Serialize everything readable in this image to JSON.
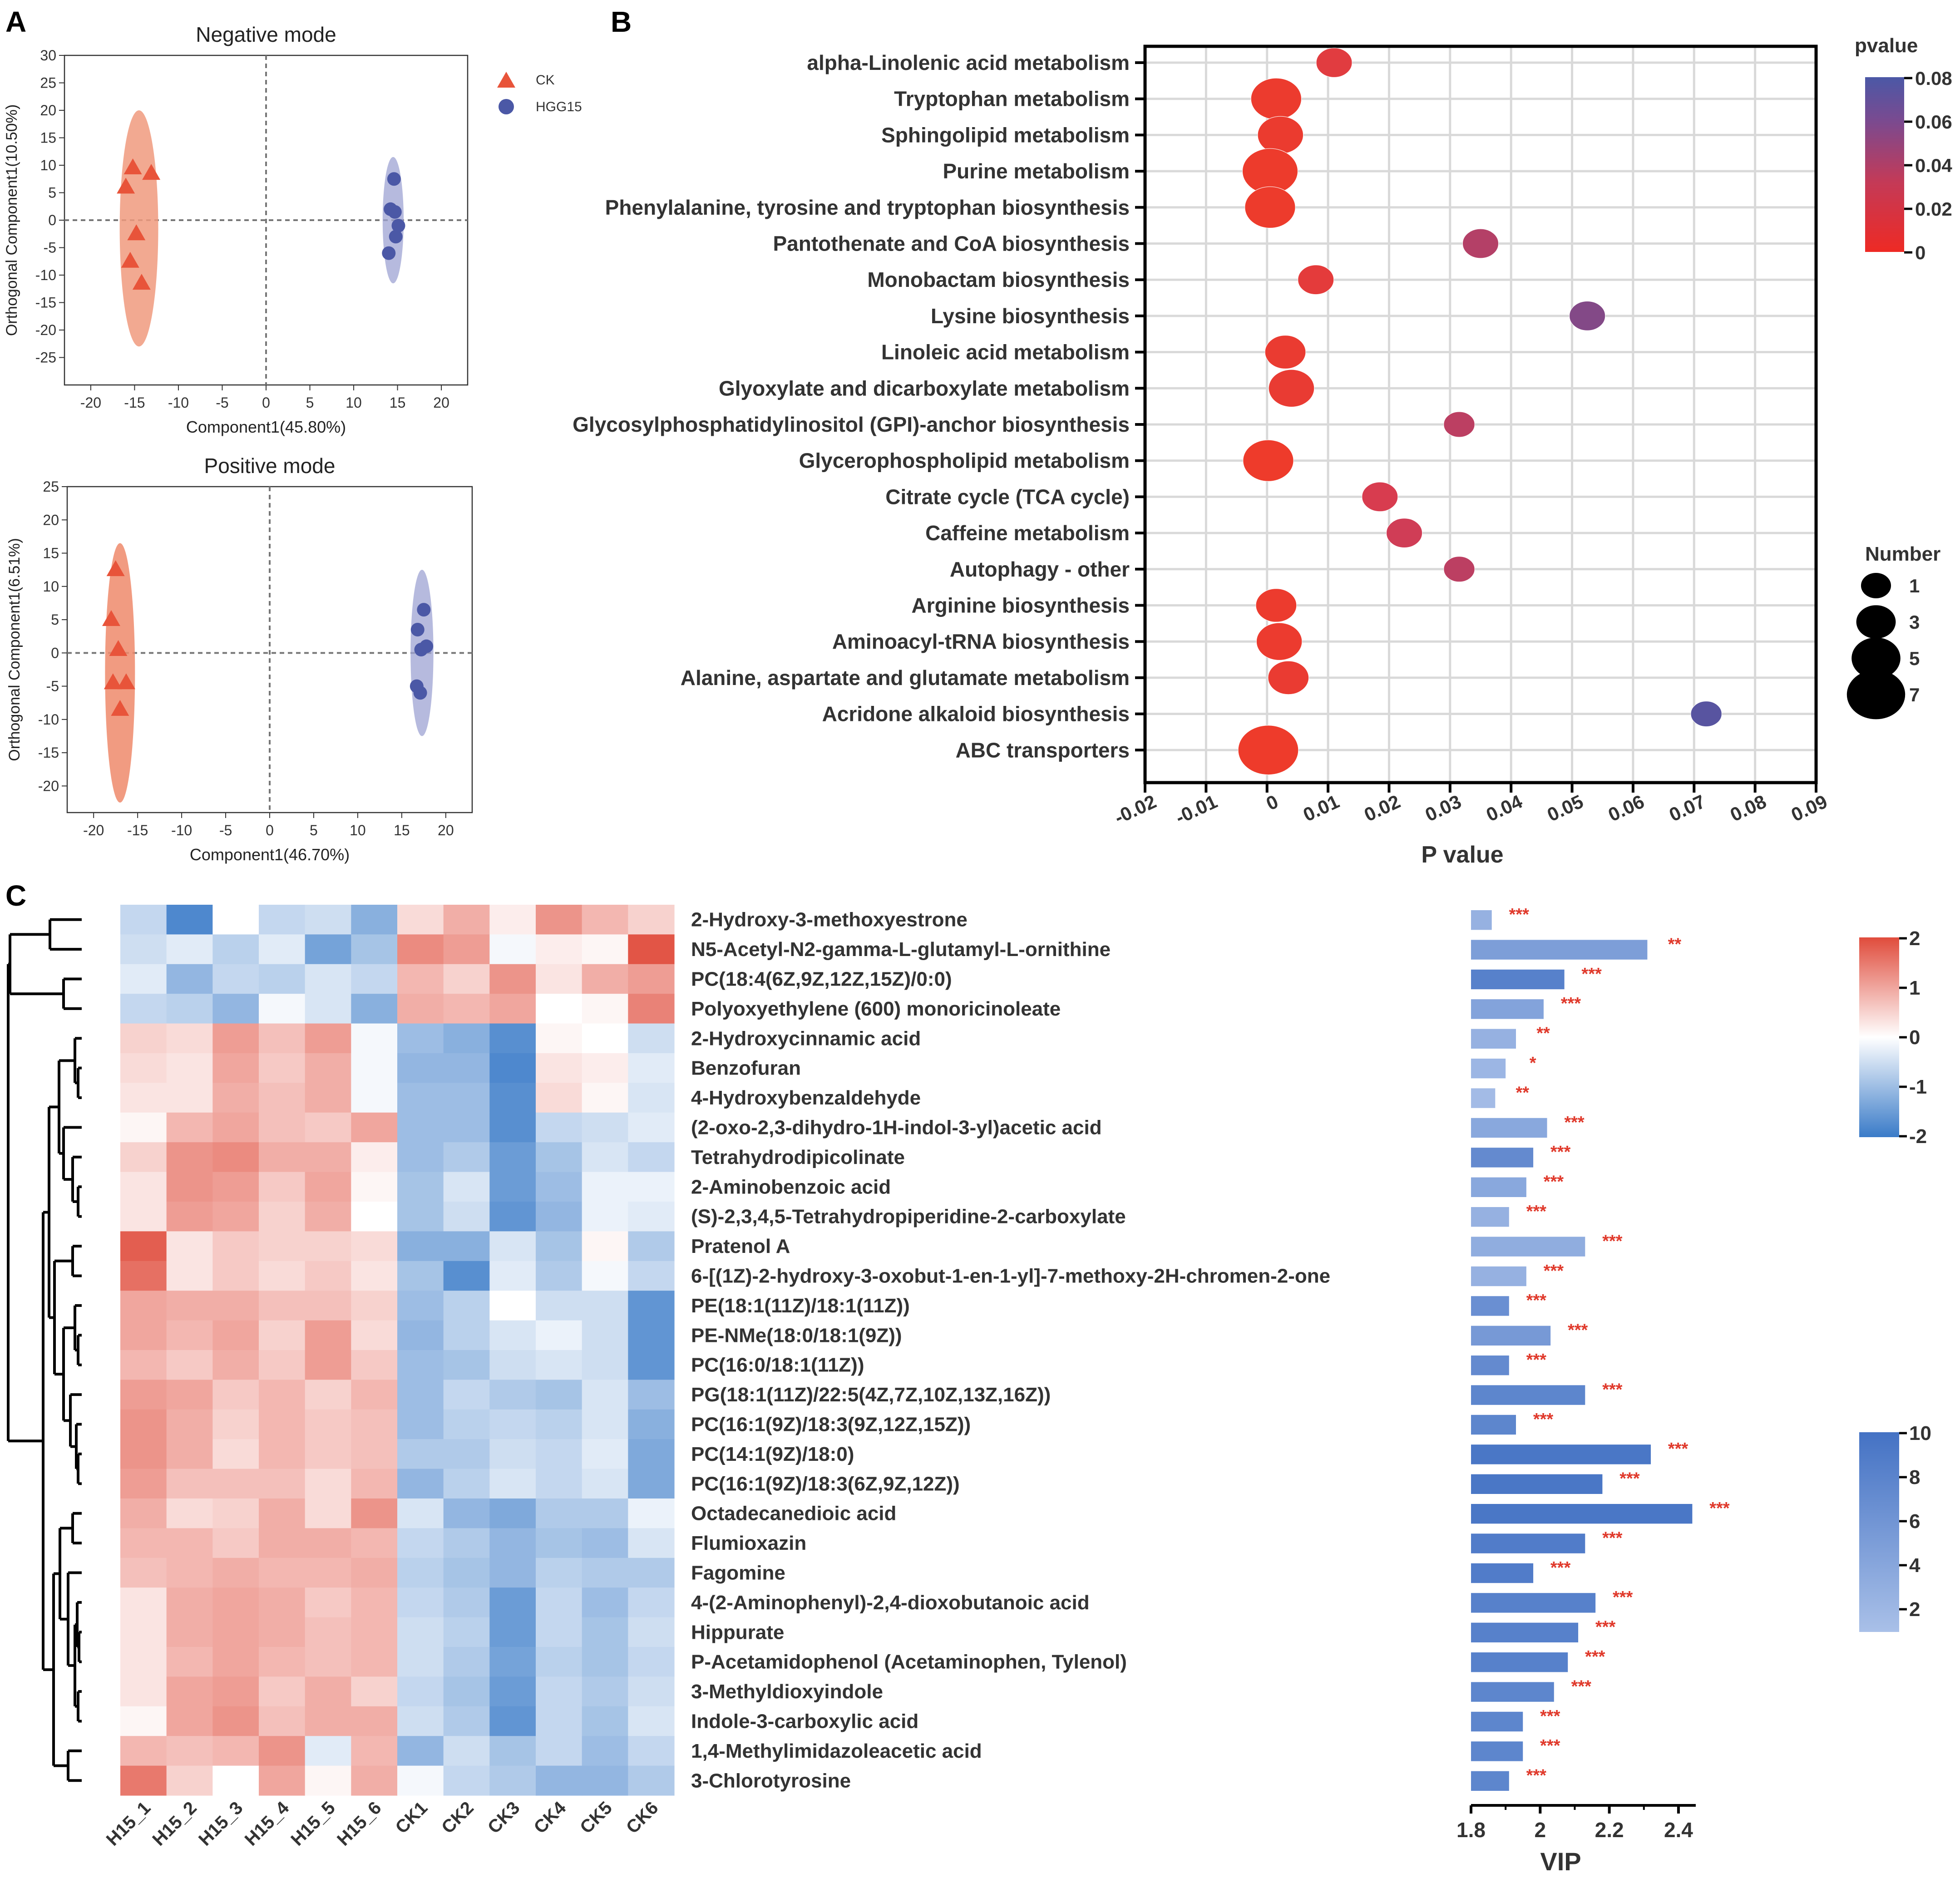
{
  "panel_labels": {
    "A": "A",
    "B": "B",
    "C": "C"
  },
  "colors": {
    "ck": "#e8543a",
    "ck_ellipse": "#f09a7e",
    "hgg": "#4b58a6",
    "hgg_ellipse": "#9ea3d3",
    "pos_ck_ellipse": "#ee8a6b",
    "grid": "#d9d9d9",
    "heat_low": "#3a7bc8",
    "heat_mid": "#ffffff",
    "heat_high": "#e04c3c",
    "vip_light": "#a9c0e8",
    "vip_dark": "#4472c4",
    "star": "#e03a2c"
  },
  "chart_data": [
    {
      "id": "negative-mode",
      "type": "scatter",
      "title": "Negative mode",
      "xlabel": "Component1(45.80%)",
      "ylabel": "Orthogonal Component1(10.50%)",
      "xlim": [
        -23,
        23
      ],
      "ylim": [
        -30,
        30
      ],
      "xticks": [
        -20,
        -15,
        -10,
        -5,
        0,
        5,
        10,
        15,
        20
      ],
      "yticks": [
        30,
        25,
        20,
        15,
        10,
        5,
        0,
        -5,
        -10,
        -15,
        -20,
        -25
      ],
      "legend": [
        {
          "name": "CK",
          "marker": "triangle"
        },
        {
          "name": "HGG15",
          "marker": "circle"
        }
      ],
      "series": [
        {
          "name": "CK",
          "points": [
            [
              -15.2,
              9.5
            ],
            [
              -13.1,
              8.5
            ],
            [
              -16.0,
              6.0
            ],
            [
              -14.8,
              -2.5
            ],
            [
              -15.5,
              -7.5
            ],
            [
              -14.2,
              -11.5
            ]
          ],
          "ellipse": {
            "cx": -14.5,
            "cy": -1.5,
            "rx": 2.2,
            "ry": 21.5
          }
        },
        {
          "name": "HGG15",
          "points": [
            [
              14.6,
              7.5
            ],
            [
              14.2,
              2.0
            ],
            [
              14.7,
              1.5
            ],
            [
              15.1,
              -1.0
            ],
            [
              14.8,
              -3.0
            ],
            [
              14.0,
              -6.0
            ]
          ],
          "ellipse": {
            "cx": 14.5,
            "cy": 0,
            "rx": 1.2,
            "ry": 11.5
          }
        }
      ]
    },
    {
      "id": "positive-mode",
      "type": "scatter",
      "title": "Positive mode",
      "xlabel": "Component1(46.70%)",
      "ylabel": "Orthogonal Component1(6.51%)",
      "xlim": [
        -23,
        23
      ],
      "ylim": [
        -24,
        25
      ],
      "xticks": [
        -20,
        -15,
        -10,
        -5,
        0,
        5,
        10,
        15,
        20
      ],
      "yticks": [
        25,
        20,
        15,
        10,
        5,
        0,
        -5,
        -10,
        -15,
        -20
      ],
      "series": [
        {
          "name": "CK",
          "points": [
            [
              -17.5,
              12.5
            ],
            [
              -18.0,
              5.0
            ],
            [
              -17.2,
              0.5
            ],
            [
              -17.8,
              -4.5
            ],
            [
              -16.3,
              -4.5
            ],
            [
              -17.0,
              -8.5
            ]
          ],
          "ellipse": {
            "cx": -17.0,
            "cy": -3.0,
            "rx": 1.7,
            "ry": 19.5
          }
        },
        {
          "name": "HGG15",
          "points": [
            [
              17.5,
              6.5
            ],
            [
              16.8,
              3.5
            ],
            [
              17.8,
              1.0
            ],
            [
              17.2,
              0.5
            ],
            [
              16.7,
              -5.0
            ],
            [
              17.1,
              -6.0
            ]
          ],
          "ellipse": {
            "cx": 17.3,
            "cy": 0,
            "rx": 1.3,
            "ry": 12.5
          }
        }
      ]
    },
    {
      "id": "pathway-bubble",
      "type": "scatter",
      "xlabel": "P value",
      "xlim": [
        -0.02,
        0.09
      ],
      "xticks": [
        "-0.02",
        "-0.01",
        "0",
        "0.01",
        "0.02",
        "0.03",
        "0.04",
        "0.05",
        "0.06",
        "0.07",
        "0.08",
        "0.09"
      ],
      "color_legend": {
        "title": "pvalue",
        "ticks": [
          "0.08",
          "0.06",
          "0.04",
          "0.02",
          "0"
        ]
      },
      "size_legend": {
        "title": "Number",
        "values": [
          "1",
          "3",
          "5",
          "7"
        ]
      },
      "pathways": [
        {
          "name": "alpha-Linolenic acid metabolism",
          "p": 0.011,
          "n": 2
        },
        {
          "name": "Tryptophan metabolism",
          "p": 0.0015,
          "n": 5
        },
        {
          "name": "Sphingolipid metabolism",
          "p": 0.0022,
          "n": 4
        },
        {
          "name": "Purine metabolism",
          "p": 0.0005,
          "n": 6
        },
        {
          "name": "Phenylalanine, tyrosine and tryptophan biosynthesis",
          "p": 0.0005,
          "n": 5
        },
        {
          "name": "Pantothenate and CoA biosynthesis",
          "p": 0.035,
          "n": 2
        },
        {
          "name": "Monobactam biosynthesis",
          "p": 0.008,
          "n": 2
        },
        {
          "name": "Lysine biosynthesis",
          "p": 0.0525,
          "n": 2
        },
        {
          "name": "Linoleic acid metabolism",
          "p": 0.003,
          "n": 3
        },
        {
          "name": "Glyoxylate and dicarboxylate metabolism",
          "p": 0.004,
          "n": 4
        },
        {
          "name": "Glycosylphosphatidylinositol (GPI)-anchor biosynthesis",
          "p": 0.0315,
          "n": 1
        },
        {
          "name": "Glycerophospholipid metabolism",
          "p": 0.0002,
          "n": 5
        },
        {
          "name": "Citrate cycle (TCA cycle)",
          "p": 0.0185,
          "n": 2
        },
        {
          "name": "Caffeine metabolism",
          "p": 0.0225,
          "n": 2
        },
        {
          "name": "Autophagy - other",
          "p": 0.0315,
          "n": 1
        },
        {
          "name": "Arginine biosynthesis",
          "p": 0.0015,
          "n": 3
        },
        {
          "name": "Aminoacyl-tRNA biosynthesis",
          "p": 0.002,
          "n": 4
        },
        {
          "name": "Alanine, aspartate and glutamate metabolism",
          "p": 0.0035,
          "n": 3
        },
        {
          "name": "Acridone alkaloid biosynthesis",
          "p": 0.072,
          "n": 1
        },
        {
          "name": "ABC transporters",
          "p": 0.0002,
          "n": 7
        }
      ]
    },
    {
      "id": "heatmap",
      "type": "heatmap",
      "columns": [
        "H15_1",
        "H15_2",
        "H15_3",
        "H15_4",
        "H15_5",
        "H15_6",
        "CK1",
        "CK2",
        "CK3",
        "CK4",
        "CK5",
        "CK6"
      ],
      "rows": [
        "2-Hydroxy-3-methoxyestrone",
        "N5-Acetyl-N2-gamma-L-glutamyl-L-ornithine",
        "PC(18:4(6Z,9Z,12Z,15Z)/0:0)",
        "Polyoxyethylene (600) monoricinoleate",
        "2-Hydroxycinnamic acid",
        "Benzofuran",
        "4-Hydroxybenzaldehyde",
        "(2-oxo-2,3-dihydro-1H-indol-3-yl)acetic acid",
        "Tetrahydrodipicolinate",
        "2-Aminobenzoic acid",
        "(S)-2,3,4,5-Tetrahydropiperidine-2-carboxylate",
        "Pratenol A",
        "6-[(1Z)-2-hydroxy-3-oxobut-1-en-1-yl]-7-methoxy-2H-chromen-2-one",
        "PE(18:1(11Z)/18:1(11Z))",
        "PE-NMe(18:0/18:1(9Z))",
        "PC(16:0/18:1(11Z))",
        "PG(18:1(11Z)/22:5(4Z,7Z,10Z,13Z,16Z))",
        "PC(16:1(9Z)/18:3(9Z,12Z,15Z))",
        "PC(14:1(9Z)/18:0)",
        "PC(16:1(9Z)/18:3(6Z,9Z,12Z))",
        "Octadecanedioic acid",
        "Flumioxazin",
        "Fagomine",
        "4-(2-Aminophenyl)-2,4-dioxobutanoic acid",
        "Hippurate",
        "P-Acetamidophenol (Acetaminophen, Tylenol)",
        "3-Methyldioxyindole",
        "Indole-3-carboxylic acid",
        "1,4-Methylimidazoleacetic acid",
        "3-Chlorotyrosine"
      ],
      "values": [
        [
          -0.6,
          -1.8,
          0.0,
          -0.6,
          -0.5,
          -1.2,
          0.4,
          0.9,
          0.2,
          1.2,
          0.8,
          0.5
        ],
        [
          -0.5,
          -0.3,
          -0.7,
          -0.3,
          -1.4,
          -0.9,
          1.3,
          1.1,
          -0.1,
          0.2,
          0.1,
          1.9
        ],
        [
          -0.3,
          -1.1,
          -0.6,
          -0.7,
          -0.4,
          -0.6,
          0.8,
          0.5,
          1.2,
          0.3,
          0.9,
          1.1
        ],
        [
          -0.6,
          -0.7,
          -1.1,
          -0.1,
          -0.4,
          -1.2,
          0.9,
          0.8,
          1.0,
          0.0,
          0.1,
          1.4
        ],
        [
          0.5,
          0.4,
          1.1,
          0.7,
          1.1,
          -0.1,
          -1.0,
          -1.2,
          -1.7,
          0.1,
          0.0,
          -0.5
        ],
        [
          0.4,
          0.3,
          1.0,
          0.6,
          0.9,
          -0.1,
          -1.1,
          -1.1,
          -1.8,
          0.3,
          0.2,
          -0.3
        ],
        [
          0.3,
          0.3,
          0.9,
          0.7,
          0.9,
          -0.1,
          -1.0,
          -1.0,
          -1.7,
          0.4,
          0.1,
          -0.4
        ],
        [
          0.1,
          0.8,
          1.0,
          0.7,
          0.6,
          1.0,
          -1.0,
          -1.0,
          -1.7,
          -0.6,
          -0.5,
          -0.3
        ],
        [
          0.5,
          1.2,
          1.3,
          0.9,
          0.9,
          0.2,
          -1.0,
          -0.8,
          -1.5,
          -0.9,
          -0.4,
          -0.6
        ],
        [
          0.3,
          1.2,
          1.1,
          0.6,
          1.0,
          0.1,
          -0.9,
          -0.4,
          -1.5,
          -1.0,
          -0.2,
          -0.2
        ],
        [
          0.3,
          1.1,
          1.0,
          0.5,
          0.9,
          0.0,
          -0.9,
          -0.5,
          -1.6,
          -1.1,
          -0.2,
          -0.3
        ],
        [
          1.8,
          0.3,
          0.6,
          0.5,
          0.5,
          0.4,
          -1.2,
          -1.2,
          -0.4,
          -0.9,
          0.1,
          -0.8
        ],
        [
          1.6,
          0.3,
          0.6,
          0.4,
          0.6,
          0.3,
          -0.9,
          -1.7,
          -0.3,
          -0.8,
          -0.1,
          -0.6
        ],
        [
          1.0,
          0.9,
          0.9,
          0.7,
          0.7,
          0.5,
          -1.0,
          -0.7,
          0.0,
          -0.5,
          -0.5,
          -1.6
        ],
        [
          1.0,
          0.8,
          1.0,
          0.5,
          1.1,
          0.4,
          -1.1,
          -0.7,
          -0.4,
          -0.2,
          -0.5,
          -1.6
        ],
        [
          0.8,
          0.6,
          0.9,
          0.6,
          1.1,
          0.6,
          -1.0,
          -0.9,
          -0.5,
          -0.4,
          -0.5,
          -1.6
        ],
        [
          1.1,
          1.0,
          0.6,
          0.8,
          0.5,
          0.8,
          -1.0,
          -0.6,
          -0.8,
          -0.9,
          -0.4,
          -1.0
        ],
        [
          1.2,
          0.9,
          0.5,
          0.8,
          0.6,
          0.7,
          -1.0,
          -0.7,
          -0.6,
          -0.7,
          -0.4,
          -1.2
        ],
        [
          1.2,
          0.9,
          0.4,
          0.8,
          0.6,
          0.7,
          -0.8,
          -0.8,
          -0.5,
          -0.6,
          -0.3,
          -1.3
        ],
        [
          1.1,
          0.7,
          0.7,
          0.7,
          0.4,
          0.8,
          -1.1,
          -0.7,
          -0.4,
          -0.6,
          -0.4,
          -1.3
        ],
        [
          0.9,
          0.4,
          0.5,
          0.9,
          0.4,
          1.2,
          -0.4,
          -1.1,
          -1.3,
          -0.8,
          -0.8,
          -0.2
        ],
        [
          0.8,
          0.8,
          0.6,
          0.9,
          0.9,
          0.8,
          -0.6,
          -0.8,
          -1.1,
          -0.9,
          -1.0,
          -0.4
        ],
        [
          0.7,
          0.8,
          0.9,
          0.8,
          0.8,
          0.9,
          -0.7,
          -0.9,
          -1.1,
          -0.7,
          -0.8,
          -0.8
        ],
        [
          0.3,
          0.9,
          1.0,
          0.9,
          0.6,
          0.8,
          -0.6,
          -0.8,
          -1.5,
          -0.6,
          -1.0,
          -0.6
        ],
        [
          0.3,
          0.9,
          1.0,
          0.9,
          0.7,
          0.8,
          -0.5,
          -0.7,
          -1.5,
          -0.6,
          -0.9,
          -0.5
        ],
        [
          0.3,
          0.8,
          1.0,
          0.8,
          0.7,
          0.8,
          -0.5,
          -0.8,
          -1.4,
          -0.7,
          -0.9,
          -0.6
        ],
        [
          0.3,
          1.0,
          1.1,
          0.6,
          0.9,
          0.5,
          -0.6,
          -0.9,
          -1.5,
          -0.6,
          -0.8,
          -0.5
        ],
        [
          0.1,
          1.0,
          1.2,
          0.7,
          0.9,
          0.9,
          -0.5,
          -0.8,
          -1.6,
          -0.6,
          -0.9,
          -0.4
        ],
        [
          0.8,
          0.7,
          0.8,
          1.2,
          -0.3,
          0.8,
          -1.1,
          -0.5,
          -0.9,
          -0.6,
          -1.0,
          -0.6
        ],
        [
          1.5,
          0.5,
          0.0,
          1.0,
          0.1,
          0.9,
          -0.1,
          -0.6,
          -0.8,
          -1.1,
          -1.1,
          -0.8
        ]
      ],
      "color_legend": {
        "ticks": [
          "2",
          "1",
          "0",
          "-1",
          "-2"
        ]
      }
    },
    {
      "id": "vip-bars",
      "type": "bar",
      "orientation": "horizontal",
      "xlabel": "VIP",
      "xlim": [
        1.8,
        2.45
      ],
      "xticks": [
        "1.8",
        "2",
        "2.2",
        "2.4"
      ],
      "values": [
        1.86,
        2.31,
        2.07,
        2.01,
        1.93,
        1.9,
        1.87,
        2.02,
        1.98,
        1.96,
        1.91,
        2.13,
        1.96,
        1.91,
        2.03,
        1.91,
        2.13,
        1.93,
        2.32,
        2.18,
        2.44,
        2.13,
        1.98,
        2.16,
        2.11,
        2.08,
        2.04,
        1.95,
        1.95,
        1.91
      ],
      "significance": [
        "***",
        "**",
        "***",
        "***",
        "**",
        "*",
        "**",
        "***",
        "***",
        "***",
        "***",
        "***",
        "***",
        "***",
        "***",
        "***",
        "***",
        "***",
        "***",
        "***",
        "***",
        "***",
        "***",
        "***",
        "***",
        "***",
        "***",
        "***",
        "***",
        "***"
      ],
      "color_values": [
        2.5,
        4.5,
        7.5,
        4.0,
        2.5,
        2.0,
        1.5,
        3.5,
        6.5,
        3.5,
        2.5,
        3.0,
        2.5,
        6.0,
        5.0,
        6.5,
        7.0,
        7.0,
        8.5,
        8.5,
        8.5,
        8.0,
        8.0,
        7.5,
        7.5,
        7.5,
        7.0,
        7.0,
        7.0,
        7.0
      ],
      "color_legend": {
        "ticks": [
          "10",
          "8",
          "6",
          "4",
          "2"
        ]
      }
    }
  ]
}
